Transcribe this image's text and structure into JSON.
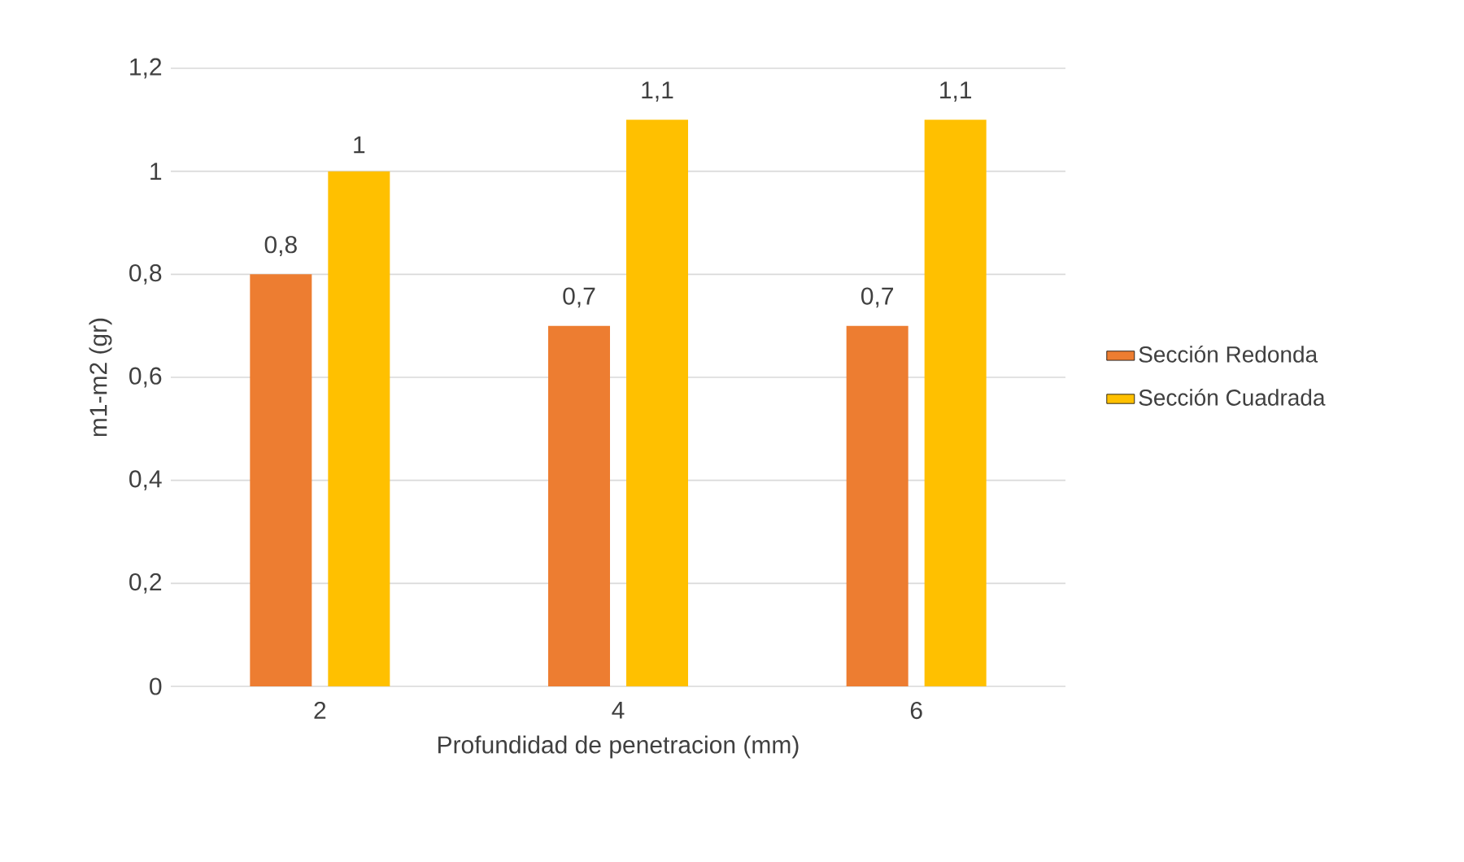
{
  "chart_data": {
    "type": "bar",
    "xlabel": "Profundidad de penetracion (mm)",
    "ylabel": "m1-m2 (gr)",
    "categories": [
      "2",
      "4",
      "6"
    ],
    "series": [
      {
        "name": "Sección Redonda",
        "color": "#ed7d31",
        "values": [
          0.8,
          0.7,
          0.7
        ],
        "value_labels": [
          "0,8",
          "0,7",
          "0,7"
        ]
      },
      {
        "name": "Sección Cuadrada",
        "color": "#ffc000",
        "values": [
          1,
          1.1,
          1.1
        ],
        "value_labels": [
          "1",
          "1,1",
          "1,1"
        ]
      }
    ],
    "ylim": [
      0,
      1.2
    ],
    "yticks": [
      0,
      {
        "value": 0.2,
        "label": "0,2"
      },
      {
        "value": 0.4,
        "label": "0,4"
      },
      {
        "value": 0.6,
        "label": "0,6"
      },
      {
        "value": 0.8,
        "label": "0,8"
      },
      1,
      {
        "value": 1.2,
        "label": "1,2"
      }
    ],
    "grid": "y",
    "legend": "right"
  }
}
